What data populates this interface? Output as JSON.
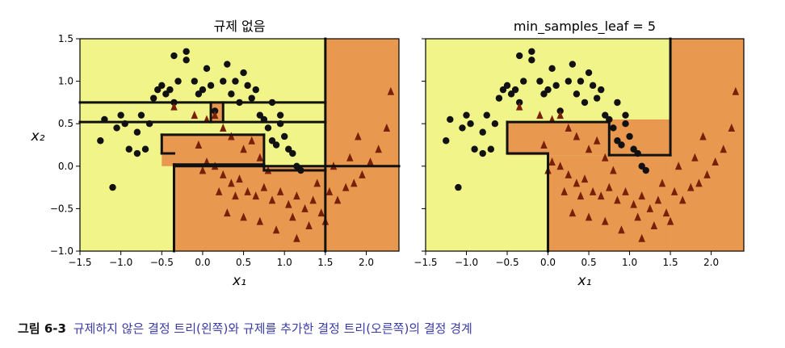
{
  "caption": {
    "label": "그림 6-3",
    "text": "규제하지 않은 결정 트리(왼쪽)와 규제를 추가한 결정 트리(오른쪽)의 결정 경계"
  },
  "colors": {
    "class0_region": "#f1f589",
    "class1_region": "#e8994f",
    "class0_marker": "#111111",
    "class1_marker": "#7a1f08",
    "boundary": "#111111"
  },
  "chart_data": [
    {
      "type": "scatter",
      "title": "규제 없음",
      "xlabel": "x₁",
      "ylabel": "x₂",
      "xlim": [
        -1.5,
        2.4
      ],
      "ylim": [
        -1.0,
        1.5
      ],
      "xticks": [
        "−1.5",
        "−1.0",
        "−0.5",
        "0.0",
        "0.5",
        "1.0",
        "1.5",
        "2.0"
      ],
      "yticks": [
        "−1.0",
        "−0.5",
        "0.0",
        "0.5",
        "1.0",
        "1.5"
      ],
      "regions_class1": [
        {
          "x": [
            1.5,
            2.4
          ],
          "y": [
            -1.0,
            1.5
          ]
        },
        {
          "x": [
            -0.35,
            1.5
          ],
          "y": [
            -1.0,
            0.0
          ]
        },
        {
          "x": [
            -0.5,
            0.75
          ],
          "y": [
            0.0,
            0.37
          ]
        },
        {
          "x": [
            0.75,
            1.5
          ],
          "y": [
            -0.05,
            0.0
          ]
        },
        {
          "x": [
            0.1,
            0.25
          ],
          "y": [
            0.52,
            0.75
          ]
        }
      ],
      "boundary_segments": [
        [
          [
            -1.5,
            0.75
          ],
          [
            1.5,
            0.75
          ]
        ],
        [
          [
            -1.5,
            0.52
          ],
          [
            1.5,
            0.52
          ]
        ],
        [
          [
            -0.35,
            -1.0
          ],
          [
            -0.35,
            0.02
          ]
        ],
        [
          [
            -0.35,
            0.02
          ],
          [
            0.75,
            0.02
          ]
        ],
        [
          [
            -0.5,
            0.15
          ],
          [
            -0.5,
            0.37
          ]
        ],
        [
          [
            -0.5,
            0.15
          ],
          [
            -0.35,
            0.15
          ]
        ],
        [
          [
            -0.5,
            0.37
          ],
          [
            0.75,
            0.37
          ]
        ],
        [
          [
            0.75,
            0.37
          ],
          [
            0.75,
            -0.05
          ]
        ],
        [
          [
            0.75,
            -0.05
          ],
          [
            1.5,
            -0.05
          ]
        ],
        [
          [
            0.1,
            0.52
          ],
          [
            0.1,
            0.75
          ]
        ],
        [
          [
            0.25,
            0.52
          ],
          [
            0.25,
            0.75
          ]
        ],
        [
          [
            -0.35,
            0.0
          ],
          [
            2.4,
            0.0
          ]
        ],
        [
          [
            1.5,
            -1.0
          ],
          [
            1.5,
            1.5
          ]
        ]
      ],
      "series": [
        {
          "class": 0,
          "marker": "circle",
          "points": [
            [
              -1.1,
              -0.25
            ],
            [
              -1.25,
              0.3
            ],
            [
              -1.2,
              0.55
            ],
            [
              -1.05,
              0.45
            ],
            [
              -1.0,
              0.6
            ],
            [
              -0.95,
              0.5
            ],
            [
              -0.9,
              0.2
            ],
            [
              -0.8,
              0.4
            ],
            [
              -0.8,
              0.15
            ],
            [
              -0.7,
              0.2
            ],
            [
              -0.75,
              0.6
            ],
            [
              -0.65,
              0.5
            ],
            [
              -0.6,
              0.8
            ],
            [
              -0.55,
              0.9
            ],
            [
              -0.5,
              0.95
            ],
            [
              -0.45,
              0.85
            ],
            [
              -0.4,
              0.9
            ],
            [
              -0.35,
              1.3
            ],
            [
              -0.3,
              1.0
            ],
            [
              -0.2,
              1.35
            ],
            [
              -0.2,
              1.25
            ],
            [
              -0.1,
              1.0
            ],
            [
              -0.05,
              0.85
            ],
            [
              0.0,
              0.9
            ],
            [
              0.05,
              1.15
            ],
            [
              0.1,
              0.95
            ],
            [
              0.15,
              0.65
            ],
            [
              0.25,
              1.0
            ],
            [
              0.3,
              1.2
            ],
            [
              0.35,
              0.85
            ],
            [
              0.4,
              1.0
            ],
            [
              0.45,
              0.75
            ],
            [
              0.5,
              1.1
            ],
            [
              0.55,
              0.95
            ],
            [
              0.6,
              0.8
            ],
            [
              0.7,
              0.6
            ],
            [
              0.75,
              0.55
            ],
            [
              0.8,
              0.45
            ],
            [
              0.85,
              0.3
            ],
            [
              0.9,
              0.25
            ],
            [
              0.95,
              0.5
            ],
            [
              1.0,
              0.35
            ],
            [
              1.05,
              0.2
            ],
            [
              1.1,
              0.15
            ],
            [
              1.15,
              0.0
            ],
            [
              1.2,
              -0.05
            ],
            [
              0.95,
              0.6
            ],
            [
              0.65,
              0.9
            ],
            [
              0.85,
              0.75
            ],
            [
              -0.35,
              0.75
            ]
          ]
        },
        {
          "class": 1,
          "marker": "triangle",
          "points": [
            [
              -0.35,
              0.7
            ],
            [
              -0.1,
              0.6
            ],
            [
              0.05,
              0.55
            ],
            [
              0.15,
              0.6
            ],
            [
              0.25,
              0.45
            ],
            [
              0.35,
              0.35
            ],
            [
              0.5,
              0.2
            ],
            [
              0.6,
              0.3
            ],
            [
              0.7,
              0.1
            ],
            [
              0.8,
              -0.05
            ],
            [
              0.05,
              0.05
            ],
            [
              0.15,
              0.0
            ],
            [
              0.25,
              -0.1
            ],
            [
              0.35,
              -0.2
            ],
            [
              0.45,
              -0.15
            ],
            [
              0.55,
              -0.3
            ],
            [
              0.65,
              -0.35
            ],
            [
              0.75,
              -0.25
            ],
            [
              0.85,
              -0.4
            ],
            [
              0.95,
              -0.3
            ],
            [
              1.05,
              -0.45
            ],
            [
              1.15,
              -0.35
            ],
            [
              1.25,
              -0.5
            ],
            [
              1.35,
              -0.4
            ],
            [
              1.45,
              -0.55
            ],
            [
              1.55,
              -0.3
            ],
            [
              1.65,
              -0.4
            ],
            [
              1.75,
              -0.25
            ],
            [
              1.85,
              -0.2
            ],
            [
              1.95,
              -0.1
            ],
            [
              2.05,
              0.05
            ],
            [
              2.15,
              0.2
            ],
            [
              2.25,
              0.45
            ],
            [
              2.3,
              0.88
            ],
            [
              1.9,
              0.35
            ],
            [
              1.8,
              0.1
            ],
            [
              1.6,
              0.0
            ],
            [
              1.4,
              -0.2
            ],
            [
              0.3,
              -0.55
            ],
            [
              0.5,
              -0.6
            ],
            [
              0.7,
              -0.65
            ],
            [
              0.9,
              -0.75
            ],
            [
              1.1,
              -0.6
            ],
            [
              1.3,
              -0.7
            ],
            [
              1.5,
              -0.65
            ],
            [
              1.15,
              -0.85
            ],
            [
              0.4,
              -0.35
            ],
            [
              0.2,
              -0.3
            ],
            [
              -0.05,
              0.25
            ],
            [
              0.0,
              -0.05
            ]
          ]
        }
      ]
    },
    {
      "type": "scatter",
      "title": "min_samples_leaf = 5",
      "xlabel": "x₁",
      "ylabel": "",
      "xlim": [
        -1.5,
        2.4
      ],
      "ylim": [
        -1.0,
        1.5
      ],
      "xticks": [
        "−1.5",
        "−1.0",
        "−0.5",
        "0.0",
        "0.5",
        "1.0",
        "1.5",
        "2.0"
      ],
      "regions_class1": [
        {
          "x": [
            1.5,
            2.4
          ],
          "y": [
            -1.0,
            1.5
          ]
        },
        {
          "x": [
            0.0,
            1.5
          ],
          "y": [
            -1.0,
            0.13
          ]
        },
        {
          "x": [
            -0.5,
            0.75
          ],
          "y": [
            0.13,
            0.52
          ]
        },
        {
          "x": [
            0.75,
            1.5
          ],
          "y": [
            0.13,
            0.55
          ]
        }
      ],
      "boundary_segments": [
        [
          [
            0.0,
            -1.0
          ],
          [
            0.0,
            0.15
          ]
        ],
        [
          [
            -0.5,
            0.15
          ],
          [
            0.0,
            0.15
          ]
        ],
        [
          [
            -0.5,
            0.15
          ],
          [
            -0.5,
            0.52
          ]
        ],
        [
          [
            -0.5,
            0.52
          ],
          [
            0.75,
            0.52
          ]
        ],
        [
          [
            0.75,
            0.52
          ],
          [
            0.75,
            0.13
          ]
        ],
        [
          [
            0.75,
            0.13
          ],
          [
            1.5,
            0.13
          ]
        ],
        [
          [
            1.5,
            0.13
          ],
          [
            1.5,
            1.5
          ]
        ]
      ],
      "series_ref": "same points as first chart"
    }
  ]
}
